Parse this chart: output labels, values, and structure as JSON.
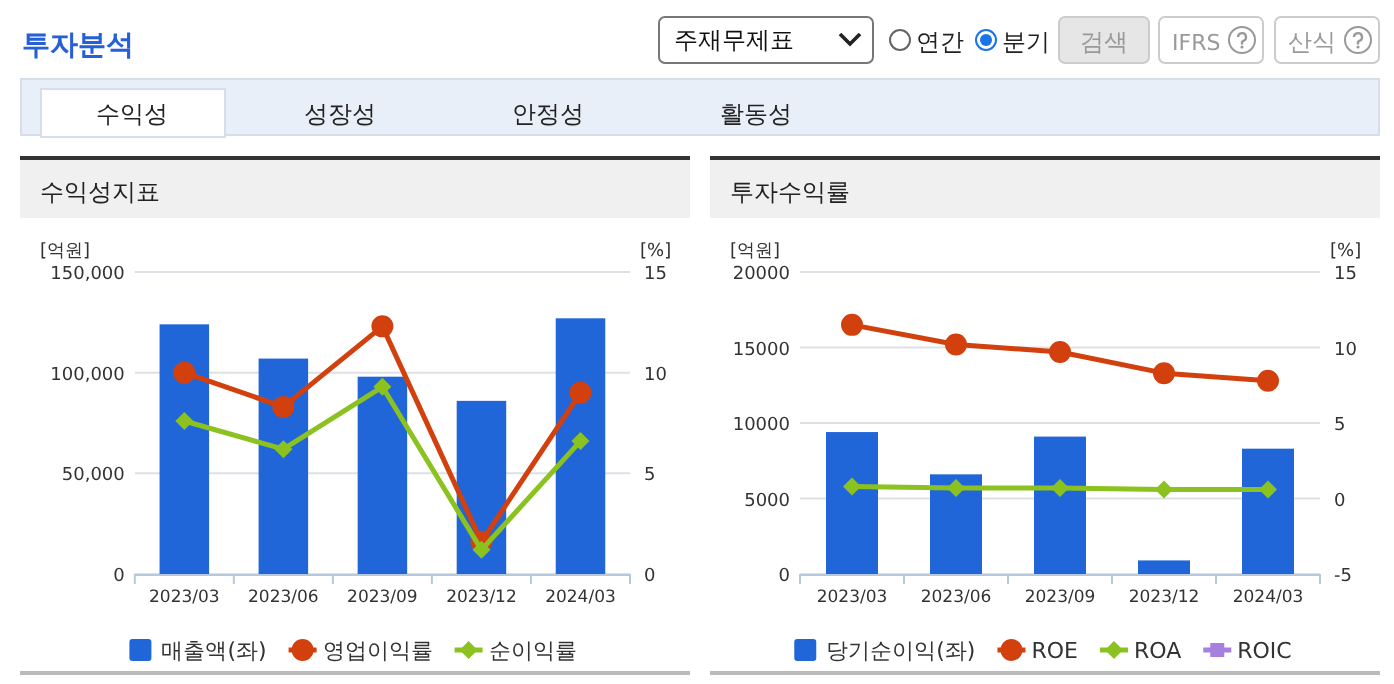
{
  "chart_data": [
    {
      "type": "other",
      "title": "투자분석",
      "annotations": [
        "주재무제표",
        "연간",
        "분기",
        "검색",
        "IFRS",
        "산식",
        "수익성",
        "성장성",
        "안정성",
        "활동성"
      ]
    },
    {
      "type": "bar",
      "title": "수익성지표",
      "ylabel": "[억원]",
      "y2label": "[%]",
      "categories": [
        "2023/03",
        "2023/06",
        "2023/09",
        "2023/12",
        "2024/03"
      ],
      "series": [
        {
          "name": "매출액(좌)",
          "type": "bar",
          "color": "#2166d9",
          "values": [
            124000,
            107000,
            98000,
            86000,
            127000
          ]
        },
        {
          "name": "영업이익률",
          "type": "line",
          "axis": "y2",
          "marker": "circle",
          "color": "#d2400e",
          "values": [
            10.0,
            8.3,
            12.3,
            1.6,
            9.0
          ]
        },
        {
          "name": "순이익률",
          "type": "line",
          "axis": "y2",
          "marker": "diamond",
          "color": "#8cc21f",
          "values": [
            7.6,
            6.2,
            9.3,
            1.2,
            6.6
          ]
        }
      ],
      "ylim": [
        0,
        150000
      ],
      "yticks": [
        0,
        {
          "value": 50000,
          "label": "50,000"
        },
        {
          "value": 100000,
          "label": "100,000"
        },
        {
          "value": 150000,
          "label": "150,000"
        }
      ],
      "y2lim": [
        0,
        15
      ],
      "y2ticks": [
        0,
        5,
        10,
        15
      ],
      "grid": "y",
      "legend": "bottom"
    },
    {
      "type": "bar",
      "title": "투자수익률",
      "ylabel": "[억원]",
      "y2label": "[%]",
      "categories": [
        "2023/03",
        "2023/06",
        "2023/09",
        "2023/12",
        "2024/03"
      ],
      "series": [
        {
          "name": "당기순이익(좌)",
          "type": "bar",
          "color": "#2166d9",
          "values": [
            9400,
            6600,
            9100,
            900,
            8300
          ]
        },
        {
          "name": "ROE",
          "type": "line",
          "axis": "y2",
          "marker": "circle",
          "color": "#d2400e",
          "values": [
            11.5,
            10.2,
            9.7,
            8.3,
            7.8
          ]
        },
        {
          "name": "ROA",
          "type": "line",
          "axis": "y2",
          "marker": "diamond",
          "color": "#8cc21f",
          "values": [
            0.8,
            0.7,
            0.7,
            0.6,
            0.6
          ]
        },
        {
          "name": "ROIC",
          "type": "line",
          "axis": "y2",
          "marker": "square",
          "color": "#a77fe0",
          "values": [
            null,
            null,
            null,
            null,
            null
          ]
        }
      ],
      "ylim": [
        0,
        20000
      ],
      "yticks": [
        0,
        5000,
        10000,
        15000,
        20000
      ],
      "y2lim": [
        -5,
        15
      ],
      "y2ticks": [
        -5,
        0,
        5,
        10,
        15
      ],
      "grid": "y",
      "legend": "bottom"
    }
  ]
}
